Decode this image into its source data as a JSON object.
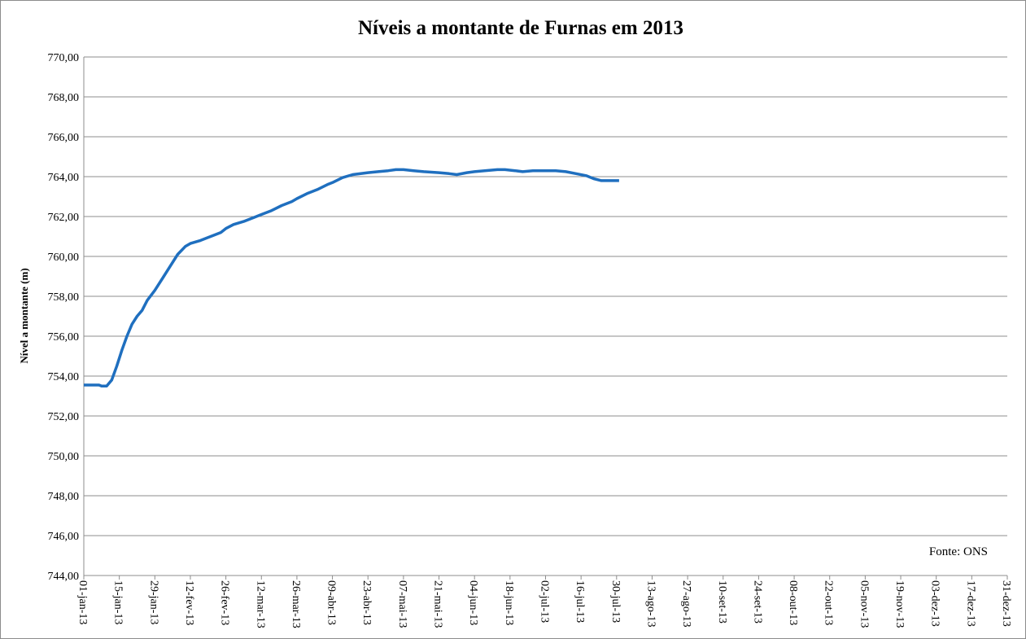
{
  "chart_data": {
    "type": "line",
    "title": "Níveis a montante de Furnas em 2013",
    "y_label": "Nível a montante  (m)",
    "annotation": "Fonte: ONS",
    "series": [
      {
        "name": "Nível a montante",
        "color": "#1f6fbf",
        "x": [
          "2013-01-01",
          "2013-01-07",
          "2013-01-08",
          "2013-01-10",
          "2013-01-12",
          "2013-01-14",
          "2013-01-16",
          "2013-01-18",
          "2013-01-20",
          "2013-01-22",
          "2013-01-24",
          "2013-01-26",
          "2013-01-29",
          "2013-02-01",
          "2013-02-04",
          "2013-02-07",
          "2013-02-10",
          "2013-02-12",
          "2013-02-16",
          "2013-02-20",
          "2013-02-24",
          "2013-02-26",
          "2013-03-01",
          "2013-03-05",
          "2013-03-09",
          "2013-03-12",
          "2013-03-16",
          "2013-03-20",
          "2013-03-24",
          "2013-03-26",
          "2013-03-30",
          "2013-04-03",
          "2013-04-07",
          "2013-04-09",
          "2013-04-13",
          "2013-04-17",
          "2013-04-23",
          "2013-04-27",
          "2013-05-01",
          "2013-05-04",
          "2013-05-07",
          "2013-05-11",
          "2013-05-15",
          "2013-05-21",
          "2013-05-25",
          "2013-05-28",
          "2013-06-01",
          "2013-06-04",
          "2013-06-08",
          "2013-06-13",
          "2013-06-16",
          "2013-06-20",
          "2013-06-23",
          "2013-06-27",
          "2013-07-02",
          "2013-07-06",
          "2013-07-10",
          "2013-07-14",
          "2013-07-18",
          "2013-07-21",
          "2013-07-24",
          "2013-07-31"
        ],
        "values": [
          753.55,
          753.55,
          753.5,
          753.5,
          753.8,
          754.5,
          755.3,
          756.0,
          756.6,
          757.0,
          757.3,
          757.8,
          758.3,
          758.9,
          759.5,
          760.1,
          760.5,
          760.65,
          760.8,
          761.0,
          761.2,
          761.4,
          761.6,
          761.75,
          761.95,
          762.1,
          762.3,
          762.55,
          762.75,
          762.9,
          763.15,
          763.35,
          763.6,
          763.7,
          763.95,
          764.1,
          764.2,
          764.25,
          764.3,
          764.35,
          764.35,
          764.3,
          764.25,
          764.2,
          764.15,
          764.1,
          764.2,
          764.25,
          764.3,
          764.35,
          764.35,
          764.3,
          764.25,
          764.3,
          764.3,
          764.3,
          764.25,
          764.15,
          764.05,
          763.9,
          763.8,
          763.8
        ]
      }
    ],
    "xlim": [
      "2013-01-01",
      "2013-12-31"
    ],
    "xticks": [
      {
        "value": "2013-01-01",
        "label": "01-jan-13"
      },
      {
        "value": "2013-01-15",
        "label": "15-jan-13"
      },
      {
        "value": "2013-01-29",
        "label": "29-jan-13"
      },
      {
        "value": "2013-02-12",
        "label": "12-fev-13"
      },
      {
        "value": "2013-02-26",
        "label": "26-fev-13"
      },
      {
        "value": "2013-03-12",
        "label": "12-mar-13"
      },
      {
        "value": "2013-03-26",
        "label": "26-mar-13"
      },
      {
        "value": "2013-04-09",
        "label": "09-abr-13"
      },
      {
        "value": "2013-04-23",
        "label": "23-abr-13"
      },
      {
        "value": "2013-05-07",
        "label": "07-mai-13"
      },
      {
        "value": "2013-05-21",
        "label": "21-mai-13"
      },
      {
        "value": "2013-06-04",
        "label": "04-jun-13"
      },
      {
        "value": "2013-06-18",
        "label": "18-jun-13"
      },
      {
        "value": "2013-07-02",
        "label": "02-jul-13"
      },
      {
        "value": "2013-07-16",
        "label": "16-jul-13"
      },
      {
        "value": "2013-07-30",
        "label": "30-jul-13"
      },
      {
        "value": "2013-08-13",
        "label": "13-ago-13"
      },
      {
        "value": "2013-08-27",
        "label": "27-ago-13"
      },
      {
        "value": "2013-09-10",
        "label": "10-set-13"
      },
      {
        "value": "2013-09-24",
        "label": "24-set-13"
      },
      {
        "value": "2013-10-08",
        "label": "08-out-13"
      },
      {
        "value": "2013-10-22",
        "label": "22-out-13"
      },
      {
        "value": "2013-11-05",
        "label": "05-nov-13"
      },
      {
        "value": "2013-11-19",
        "label": "19-nov-13"
      },
      {
        "value": "2013-12-03",
        "label": "03-dez-13"
      },
      {
        "value": "2013-12-17",
        "label": "17-dez-13"
      },
      {
        "value": "2013-12-31",
        "label": "31-dez-13"
      }
    ],
    "ylim": [
      744,
      770
    ],
    "yticks": [
      {
        "value": 744,
        "label": "744,00"
      },
      {
        "value": 746,
        "label": "746,00"
      },
      {
        "value": 748,
        "label": "748,00"
      },
      {
        "value": 750,
        "label": "750,00"
      },
      {
        "value": 752,
        "label": "752,00"
      },
      {
        "value": 754,
        "label": "754,00"
      },
      {
        "value": 756,
        "label": "756,00"
      },
      {
        "value": 758,
        "label": "758,00"
      },
      {
        "value": 760,
        "label": "760,00"
      },
      {
        "value": 762,
        "label": "762,00"
      },
      {
        "value": 764,
        "label": "764,00"
      },
      {
        "value": 766,
        "label": "766,00"
      },
      {
        "value": 768,
        "label": "768,00"
      },
      {
        "value": 770,
        "label": "770,00"
      }
    ],
    "grid": true
  }
}
